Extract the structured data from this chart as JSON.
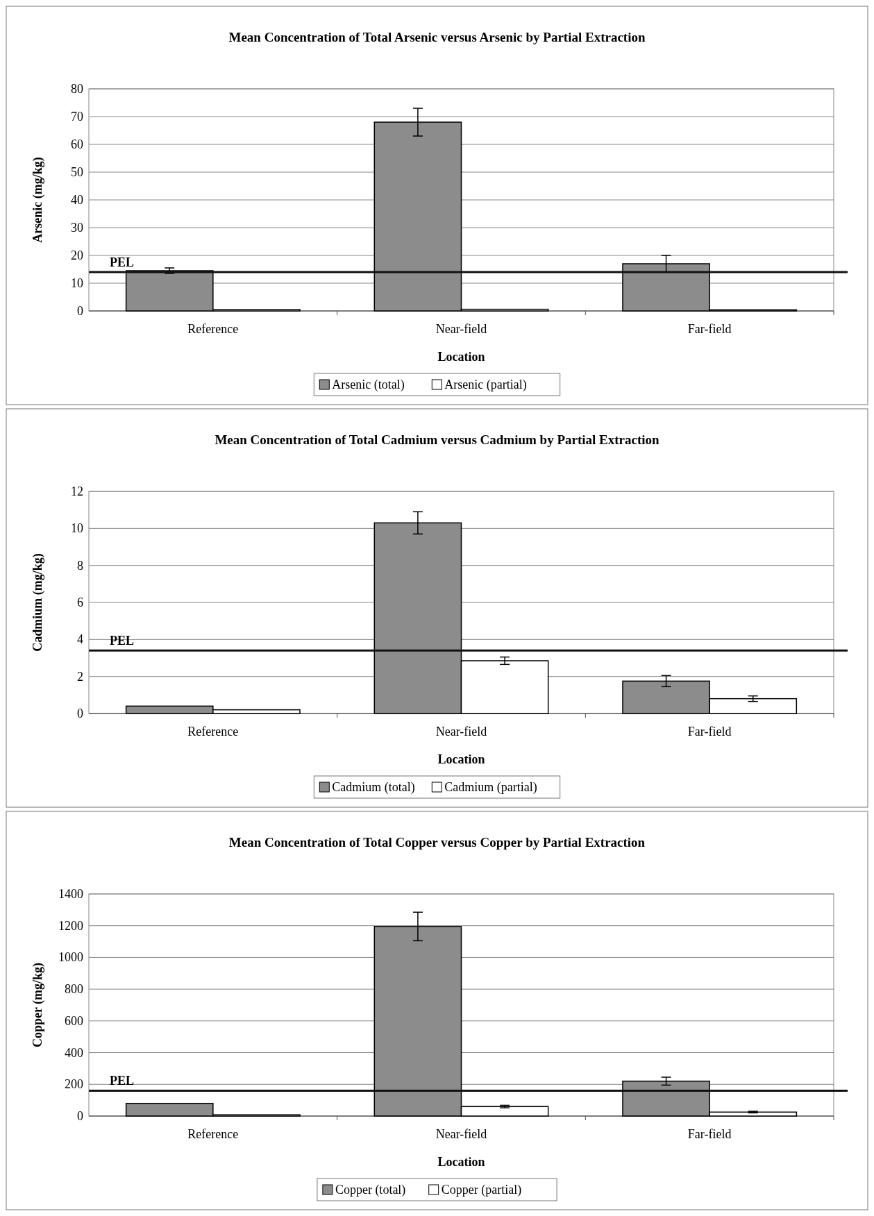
{
  "chart_data": [
    {
      "type": "bar",
      "title": "Mean Concentration of Total Arsenic versus Arsenic by Partial Extraction",
      "xlabel": "Location",
      "ylabel": "Arsenic (mg/kg)",
      "categories": [
        "Reference",
        "Near-field",
        "Far-field"
      ],
      "series": [
        {
          "name": "Arsenic (total)",
          "color": "#8c8c8c",
          "values": [
            14.5,
            68,
            17
          ],
          "errors": [
            1,
            5,
            3
          ]
        },
        {
          "name": "Arsenic (partial)",
          "color": "#ffffff",
          "values": [
            0.5,
            0.6,
            0.4
          ]
        }
      ],
      "ylim": [
        0,
        80
      ],
      "yticks": [
        0,
        10,
        20,
        30,
        40,
        50,
        60,
        70,
        80
      ],
      "grid": "y",
      "legend": "bottom",
      "ref_lines": [
        {
          "axis": "y",
          "value": 14,
          "label": "PEL"
        }
      ]
    },
    {
      "type": "bar",
      "title": "Mean Concentration of Total Cadmium versus Cadmium by Partial Extraction",
      "xlabel": "Location",
      "ylabel": "Cadmium (mg/kg)",
      "categories": [
        "Reference",
        "Near-field",
        "Far-field"
      ],
      "series": [
        {
          "name": "Cadmium (total)",
          "color": "#8c8c8c",
          "values": [
            0.4,
            10.3,
            1.75
          ],
          "errors": [
            null,
            0.6,
            0.3
          ]
        },
        {
          "name": "Cadmium (partial)",
          "color": "#ffffff",
          "values": [
            0.2,
            2.85,
            0.8
          ],
          "errors": [
            null,
            0.2,
            0.15
          ]
        }
      ],
      "ylim": [
        0,
        12
      ],
      "yticks": [
        0,
        2,
        4,
        6,
        8,
        10,
        12
      ],
      "grid": "y",
      "legend": "bottom",
      "ref_lines": [
        {
          "axis": "y",
          "value": 3.4,
          "label": "PEL"
        }
      ]
    },
    {
      "type": "bar",
      "title": "Mean Concentration of Total Copper versus Copper by Partial Extraction",
      "xlabel": "Location",
      "ylabel": "Copper (mg/kg)",
      "categories": [
        "Reference",
        "Near-field",
        "Far-field"
      ],
      "series": [
        {
          "name": "Copper (total)",
          "color": "#8c8c8c",
          "values": [
            80,
            1195,
            220
          ],
          "errors": [
            null,
            90,
            25
          ]
        },
        {
          "name": "Copper  (partial)",
          "color": "#ffffff",
          "values": [
            8,
            60,
            25
          ],
          "errors": [
            null,
            8,
            5
          ]
        }
      ],
      "ylim": [
        0,
        1400
      ],
      "yticks": [
        0,
        200,
        400,
        600,
        800,
        1000,
        1200,
        1400
      ],
      "grid": "y",
      "legend": "bottom",
      "ref_lines": [
        {
          "axis": "y",
          "value": 160,
          "label": "PEL"
        }
      ]
    }
  ]
}
